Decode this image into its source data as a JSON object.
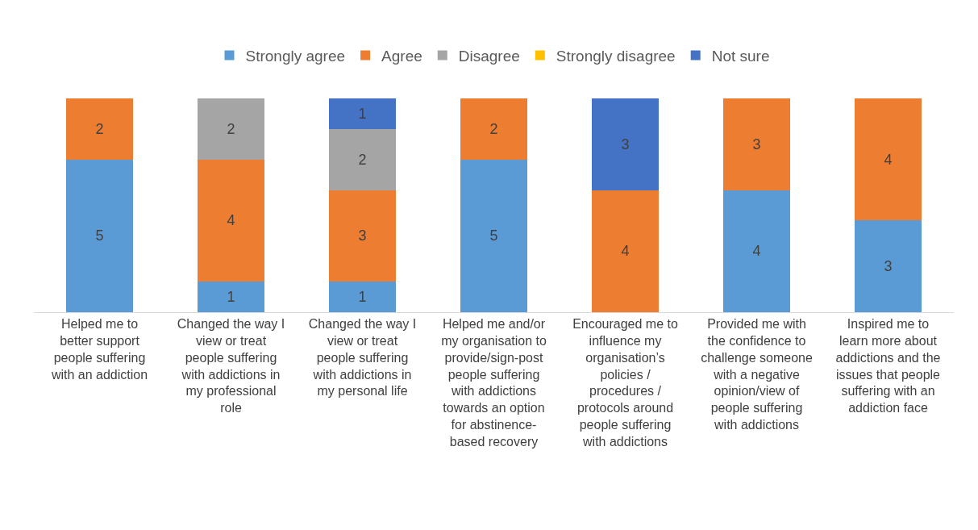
{
  "chart_data": {
    "type": "bar",
    "stacked": true,
    "data_labels": true,
    "legend": "top",
    "categories": [
      "Helped me to better support people suffering with an addiction",
      "Changed the way I view or treat people suffering with addictions in my professional role",
      "Changed the way I view or treat people suffering with addictions in my personal life",
      "Helped me and/or my organisation to provide/sign-post people suffering with addictions towards an option for abstinence-based recovery",
      "Encouraged me to influence my organisation’s policies / procedures / protocols around people suffering with addictions",
      "Provided me with the confidence to challenge someone with a negative opinion/view of people suffering with addictions",
      "Inspired me to learn more about addictions and the issues that people suffering with an addiction face"
    ],
    "series": [
      {
        "name": "Strongly agree",
        "color": "#5b9bd5",
        "values": [
          5,
          1,
          1,
          5,
          null,
          4,
          3
        ]
      },
      {
        "name": "Agree",
        "color": "#ed7d31",
        "values": [
          2,
          4,
          3,
          2,
          4,
          3,
          4
        ]
      },
      {
        "name": "Disagree",
        "color": "#a5a5a5",
        "values": [
          null,
          2,
          2,
          null,
          null,
          null,
          null
        ]
      },
      {
        "name": "Strongly disagree",
        "color": "#ffc000",
        "values": [
          null,
          null,
          null,
          null,
          null,
          null,
          null
        ]
      },
      {
        "name": "Not sure",
        "color": "#4472c4",
        "values": [
          null,
          null,
          1,
          null,
          3,
          null,
          null
        ]
      }
    ]
  }
}
